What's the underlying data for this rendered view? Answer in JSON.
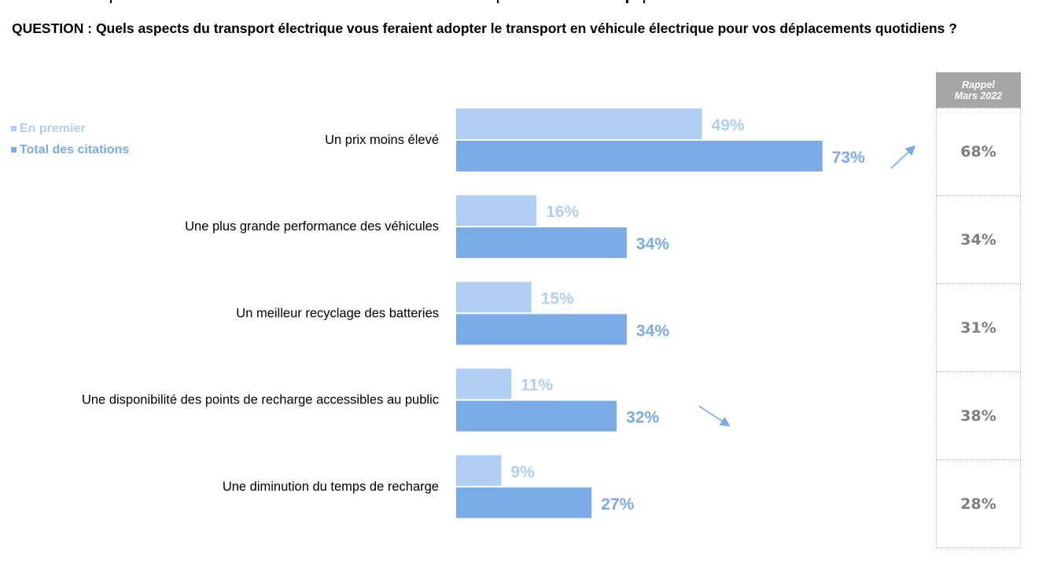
{
  "question": {
    "text": "QUESTION : Quels aspects du transport électrique vous feraient adopter le transport en véhicule électrique pour vos déplacements quotidiens ?"
  },
  "colors": {
    "first_mention": "#b1cff2",
    "total_mentions": "#7babe4",
    "first_label": "#b1cff2",
    "total_label": "#7babe4",
    "rappel_header_bg": "#a6a6a6",
    "rappel_text": "#7f7f7f",
    "trend_arrow": "#7babe4"
  },
  "legend": {
    "items": [
      {
        "label": "En premier",
        "color": "#b1cff2"
      },
      {
        "label": "Total des citations",
        "color": "#7babe4"
      }
    ]
  },
  "rappel": {
    "header_line1": "Rappel",
    "header_line2": "Mars 2022",
    "values": [
      "68%",
      "34%",
      "31%",
      "38%",
      "28%"
    ]
  },
  "chart_data": {
    "type": "bar",
    "orientation": "horizontal",
    "title": "QUESTION : Quels aspects du transport électrique vous feraient adopter le transport en véhicule électrique pour vos déplacements quotidiens ?",
    "xlabel": "",
    "ylabel": "",
    "unit": "%",
    "xlim": [
      0,
      100
    ],
    "grid": false,
    "legend_position": "top-left",
    "categories": [
      "Un prix moins élevé",
      "Une plus grande performance des véhicules",
      "Un meilleur recyclage des batteries",
      "Une disponibilité des points de recharge accessibles au public",
      "Une diminution du temps de recharge"
    ],
    "series": [
      {
        "name": "En premier",
        "values": [
          49,
          16,
          15,
          11,
          9
        ]
      },
      {
        "name": "Total des citations",
        "values": [
          73,
          34,
          34,
          32,
          27
        ]
      }
    ],
    "comparison": {
      "name": "Rappel Mars 2022",
      "values": [
        68,
        34,
        31,
        38,
        28
      ]
    },
    "trend_annotations": [
      {
        "category": "Un prix moins élevé",
        "direction": "up"
      },
      {
        "category": "Une disponibilité des points de recharge accessibles au public",
        "direction": "down"
      }
    ]
  }
}
